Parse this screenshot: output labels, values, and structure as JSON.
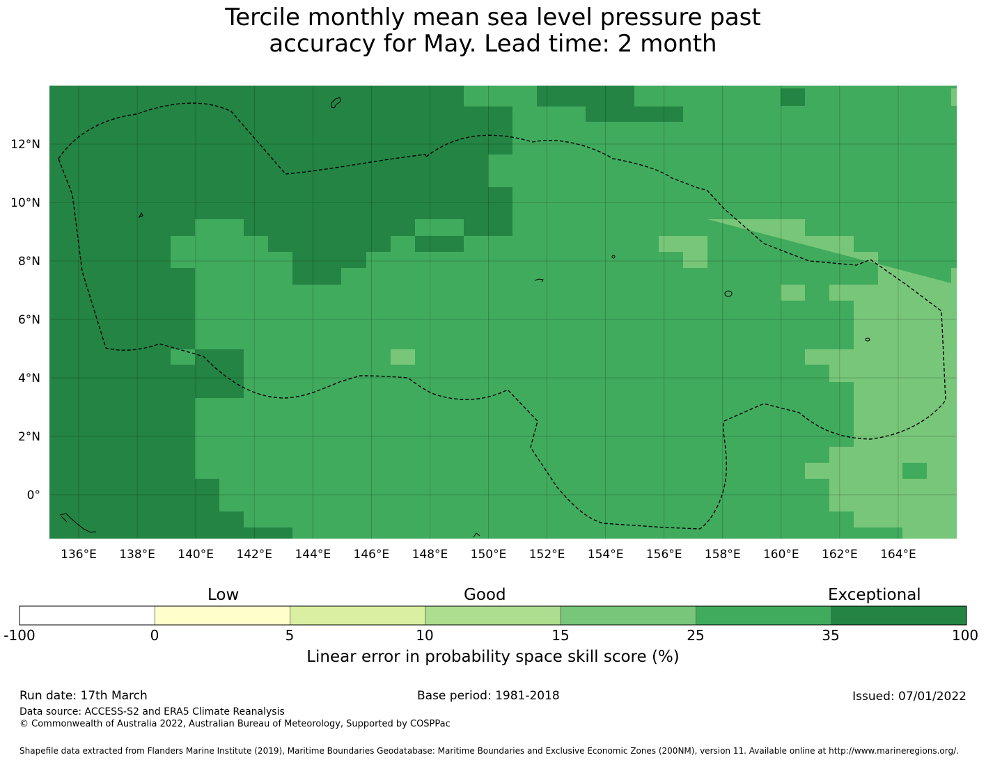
{
  "title_line1": "Tercile monthly mean sea level pressure past",
  "title_line2": "accuracy for May. Lead time: 2 month",
  "map": {
    "lon_min": 135.0,
    "lon_max": 166.0,
    "lat_min": -1.5,
    "lat_max": 14.0,
    "x_ticks": [
      136,
      138,
      140,
      142,
      144,
      146,
      148,
      150,
      152,
      154,
      156,
      158,
      160,
      162,
      164
    ],
    "x_tick_labels": [
      "136°E",
      "138°E",
      "140°E",
      "142°E",
      "144°E",
      "146°E",
      "148°E",
      "150°E",
      "152°E",
      "154°E",
      "156°E",
      "158°E",
      "160°E",
      "162°E",
      "164°E"
    ],
    "y_ticks": [
      0,
      2,
      4,
      6,
      8,
      10,
      12
    ],
    "y_tick_labels": [
      "0°",
      "2°N",
      "4°N",
      "6°N",
      "8°N",
      "10°N",
      "12°N"
    ]
  },
  "colorbar": {
    "category_labels": [
      "Low",
      "Good",
      "Exceptional"
    ],
    "boundaries": [
      "-100",
      "0",
      "5",
      "10",
      "15",
      "25",
      "35",
      "100"
    ],
    "colors": [
      "#ffffff",
      "#ffffcc",
      "#d9f0a3",
      "#addd8e",
      "#78c679",
      "#41ab5d",
      "#238443"
    ],
    "title": "Linear error in probability space skill score (%)"
  },
  "footer": {
    "run_date": "Run date: 17th March",
    "base_period": "Base period: 1981-2018",
    "issued": "Issued: 07/01/2022",
    "data_source": "Data source: ACCESS-S2 and ERA5 Climate Reanalysis",
    "copyright": "© Commonwealth of Australia 2022, Australian Bureau of Meteorology, Supported by COSPPac",
    "shapefile": "Shapefile data extracted from Flanders Marine Institute (2019), Maritime Boundaries Geodatabase: Maritime Boundaries and Exclusive Economic Zones (200NM), version 11. Available online at http://www.marineregions.org/."
  }
}
